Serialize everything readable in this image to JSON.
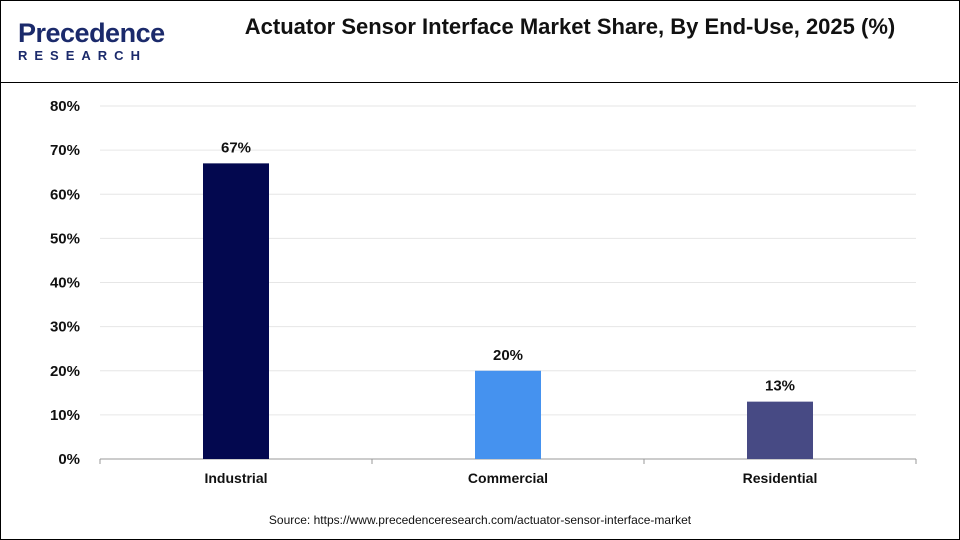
{
  "logo": {
    "line1": "Precedence",
    "line2": "RESEARCH"
  },
  "title": "Actuator Sensor Interface Market Share, By End-Use, 2025 (%)",
  "source": "Source: https://www.precedenceresearch.com/actuator-sensor-interface-market",
  "chart_data": {
    "type": "bar",
    "title": "Actuator Sensor Interface Market Share, By End-Use, 2025 (%)",
    "categories": [
      "Industrial",
      "Commercial",
      "Residential"
    ],
    "values": [
      67,
      20,
      13
    ],
    "data_labels": [
      "67%",
      "20%",
      "13%"
    ],
    "colors": [
      "#03084f",
      "#4592ef",
      "#474a84"
    ],
    "ylim": [
      0,
      80
    ],
    "yticks": [
      "0%",
      "10%",
      "20%",
      "30%",
      "40%",
      "50%",
      "60%",
      "70%",
      "80%"
    ],
    "grid": true
  }
}
